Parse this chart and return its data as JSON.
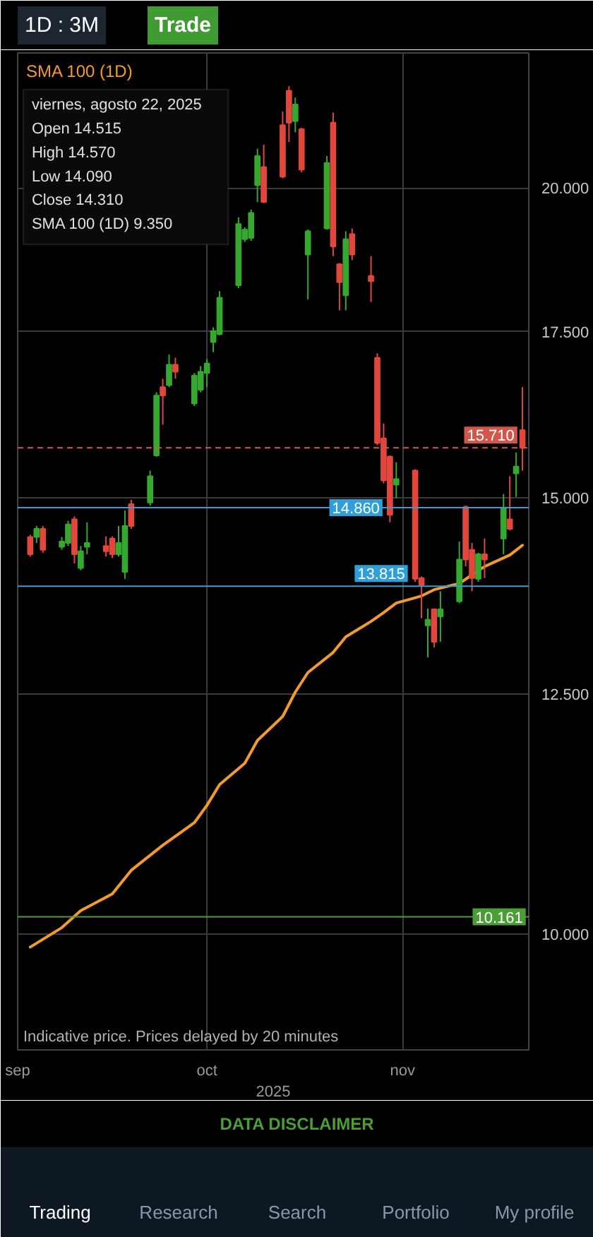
{
  "chart_data": {
    "type": "candlestick",
    "x": [
      "2025-09-03",
      "2025-09-04",
      "2025-09-05",
      "2025-09-08",
      "2025-09-09",
      "2025-09-10",
      "2025-09-11",
      "2025-09-12",
      "2025-09-15",
      "2025-09-16",
      "2025-09-17",
      "2025-09-18",
      "2025-09-19",
      "2025-09-22",
      "2025-09-23",
      "2025-09-24",
      "2025-09-25",
      "2025-09-26",
      "2025-09-29",
      "2025-09-30",
      "2025-10-01",
      "2025-10-02",
      "2025-10-03",
      "2025-10-06",
      "2025-10-07",
      "2025-10-08",
      "2025-10-09",
      "2025-10-10",
      "2025-10-13",
      "2025-10-14",
      "2025-10-15",
      "2025-10-16",
      "2025-10-17",
      "2025-10-20",
      "2025-10-21",
      "2025-10-22",
      "2025-10-23",
      "2025-10-24",
      "2025-10-27",
      "2025-10-28",
      "2025-10-29",
      "2025-10-30",
      "2025-10-31",
      "2025-11-03",
      "2025-11-04",
      "2025-11-05",
      "2025-11-06",
      "2025-11-07",
      "2025-11-10",
      "2025-11-11",
      "2025-11-12",
      "2025-11-13",
      "2025-11-14",
      "2025-11-17",
      "2025-11-18",
      "2025-11-19",
      "2025-11-20"
    ],
    "ohlc": [
      [
        14.46,
        14.49,
        14.2,
        14.23
      ],
      [
        14.46,
        14.61,
        14.38,
        14.57
      ],
      [
        14.57,
        14.61,
        14.25,
        14.29
      ],
      [
        14.33,
        14.46,
        14.29,
        14.4
      ],
      [
        14.38,
        14.68,
        14.34,
        14.63
      ],
      [
        14.7,
        14.74,
        14.11,
        14.23
      ],
      [
        14.05,
        14.34,
        14.02,
        14.27
      ],
      [
        14.33,
        14.66,
        14.23,
        14.38
      ],
      [
        14.34,
        14.47,
        14.2,
        14.27
      ],
      [
        14.44,
        14.47,
        14.18,
        14.23
      ],
      [
        14.23,
        14.61,
        14.2,
        14.38
      ],
      [
        14.0,
        14.82,
        13.91,
        14.61
      ],
      [
        14.91,
        14.97,
        14.57,
        14.61
      ],
      [
        14.93,
        15.38,
        14.89,
        15.3
      ],
      [
        15.6,
        16.54,
        15.58,
        16.49
      ],
      [
        16.62,
        16.75,
        16.05,
        16.49
      ],
      [
        16.65,
        17.13,
        16.62,
        16.97
      ],
      [
        16.97,
        17.08,
        16.75,
        16.86
      ],
      [
        16.37,
        16.84,
        16.33,
        16.8
      ],
      [
        16.58,
        16.95,
        16.54,
        16.86
      ],
      [
        16.84,
        17.06,
        16.62,
        16.99
      ],
      [
        17.33,
        17.57,
        17.17,
        17.51
      ],
      [
        17.46,
        18.17,
        17.44,
        18.06
      ],
      [
        18.27,
        19.46,
        18.22,
        19.34
      ],
      [
        19.07,
        19.28,
        19.02,
        19.24
      ],
      [
        19.09,
        19.6,
        19.04,
        19.54
      ],
      [
        20.05,
        20.74,
        19.74,
        20.6
      ],
      [
        20.39,
        20.82,
        19.72,
        19.74
      ],
      [
        21.2,
        21.47,
        20.18,
        20.21
      ],
      [
        21.89,
        21.98,
        20.87,
        21.25
      ],
      [
        21.28,
        21.75,
        21.06,
        21.61
      ],
      [
        21.12,
        21.15,
        20.29,
        20.34
      ],
      [
        18.8,
        19.24,
        18.03,
        19.21
      ],
      [
        19.26,
        20.6,
        19.24,
        20.47
      ],
      [
        21.25,
        21.45,
        18.77,
        18.94
      ],
      [
        18.63,
        18.65,
        17.85,
        18.32
      ],
      [
        18.1,
        19.21,
        17.85,
        19.07
      ],
      [
        19.16,
        19.26,
        18.7,
        18.8
      ],
      [
        18.43,
        18.77,
        17.99,
        18.34
      ],
      [
        17.08,
        17.15,
        15.75,
        15.78
      ],
      [
        15.85,
        16.07,
        15.2,
        15.24
      ],
      [
        15.58,
        15.6,
        14.66,
        14.76
      ],
      [
        15.18,
        15.5,
        14.99,
        15.26
      ],
      [
        15.38,
        15.4,
        13.87,
        13.91
      ],
      [
        13.92,
        13.94,
        13.41,
        13.83
      ],
      [
        13.32,
        13.53,
        12.93,
        13.39
      ],
      [
        13.52,
        13.53,
        13.05,
        13.12
      ],
      [
        13.43,
        13.75,
        13.12,
        13.52
      ],
      [
        13.62,
        14.4,
        13.6,
        14.16
      ],
      [
        14.87,
        14.89,
        14.07,
        14.16
      ],
      [
        14.29,
        14.38,
        13.75,
        13.92
      ],
      [
        13.91,
        14.25,
        13.87,
        14.23
      ],
      [
        14.23,
        14.44,
        13.92,
        14.16
      ],
      [
        14.44,
        15.05,
        14.23,
        14.86
      ],
      [
        14.7,
        15.3,
        14.55,
        14.57
      ],
      [
        15.34,
        15.64,
        15.01,
        15.44
      ],
      [
        15.97,
        16.62,
        15.38,
        15.71
      ]
    ],
    "colors": [
      "#e2473d",
      "#35a82f",
      "#e2473d",
      "#35a82f",
      "#35a82f",
      "#e2473d",
      "#35a82f",
      "#35a82f",
      "#e2473d",
      "#e2473d",
      "#35a82f",
      "#35a82f",
      "#e2473d",
      "#35a82f",
      "#35a82f",
      "#e2473d",
      "#35a82f",
      "#e2473d",
      "#35a82f",
      "#35a82f",
      "#35a82f",
      "#35a82f",
      "#35a82f",
      "#35a82f",
      "#35a82f",
      "#35a82f",
      "#35a82f",
      "#e2473d",
      "#e2473d",
      "#e2473d",
      "#35a82f",
      "#e2473d",
      "#35a82f",
      "#35a82f",
      "#e2473d",
      "#e2473d",
      "#35a82f",
      "#e2473d",
      "#e2473d",
      "#e2473d",
      "#e2473d",
      "#e2473d",
      "#35a82f",
      "#e2473d",
      "#e2473d",
      "#35a82f",
      "#e2473d",
      "#35a82f",
      "#35a82f",
      "#e2473d",
      "#e2473d",
      "#35a82f",
      "#e2473d",
      "#35a82f",
      "#e2473d",
      "#35a82f",
      "#e2473d"
    ],
    "series": [
      {
        "name": "SMA 100 (1D)",
        "type": "line",
        "color": "#f39a2c",
        "x": [
          "2025-09-03",
          "2025-09-08",
          "2025-09-11",
          "2025-09-16",
          "2025-09-19",
          "2025-09-24",
          "2025-09-29",
          "2025-10-01",
          "2025-10-03",
          "2025-10-07",
          "2025-10-09",
          "2025-10-13",
          "2025-10-15",
          "2025-10-17",
          "2025-10-21",
          "2025-10-23",
          "2025-10-27",
          "2025-10-29",
          "2025-10-31",
          "2025-11-04",
          "2025-11-06",
          "2025-11-10",
          "2025-11-12",
          "2025-11-14",
          "2025-11-18",
          "2025-11-20"
        ],
        "values": [
          9.88,
          10.06,
          10.22,
          10.38,
          10.61,
          10.86,
          11.09,
          11.27,
          11.49,
          11.72,
          11.97,
          12.24,
          12.52,
          12.75,
          12.99,
          13.18,
          13.37,
          13.48,
          13.6,
          13.69,
          13.77,
          13.85,
          13.96,
          14.07,
          14.22,
          14.35
        ]
      }
    ],
    "xlim": [
      "2025-09-01",
      "2025-11-21"
    ],
    "xticks": [
      {
        "value": "2025-09-01",
        "label": "sep"
      },
      {
        "value": "2025-10-01",
        "label": "oct"
      },
      {
        "value": "2025-11-01",
        "label": "nov"
      }
    ],
    "xlabel": "2025",
    "ylim": [
      8.98,
      22.67
    ],
    "yticks": [
      {
        "value": 10,
        "label": "10.000"
      },
      {
        "value": 12.5,
        "label": "12.500"
      },
      {
        "value": 15,
        "label": "15.000"
      },
      {
        "value": 17.5,
        "label": "17.500"
      },
      {
        "value": 20,
        "label": "20.000"
      }
    ],
    "log": true,
    "grid": true,
    "legend": "top left",
    "ref_lines": [
      {
        "axis": "y",
        "value": 15.71,
        "label": "15.710",
        "color": "#d0584b",
        "line_style": "dashed"
      },
      {
        "axis": "y",
        "value": 14.86,
        "label": "14.860",
        "color": "#2f9fd8",
        "line_style": "solid"
      },
      {
        "axis": "y",
        "value": 13.815,
        "label": "13.815",
        "color": "#2f9fd8",
        "line_style": "solid"
      },
      {
        "axis": "y",
        "value": 10.161,
        "label": "10.161",
        "color": "#4a9e35",
        "line_style": "solid"
      }
    ],
    "annotations": [
      "viernes, agosto 22, 2025",
      "Open 14.515",
      "High 14.570",
      "Low 14.090",
      "Close 14.310",
      "SMA 100 (1D) 9.350",
      "Indicative price. Prices delayed by 20 minutes",
      "DATA DISCLAIMER",
      "1D : 3M",
      "Trade",
      "Trading",
      "Research",
      "Search",
      "Portfolio",
      "My profile"
    ]
  }
}
